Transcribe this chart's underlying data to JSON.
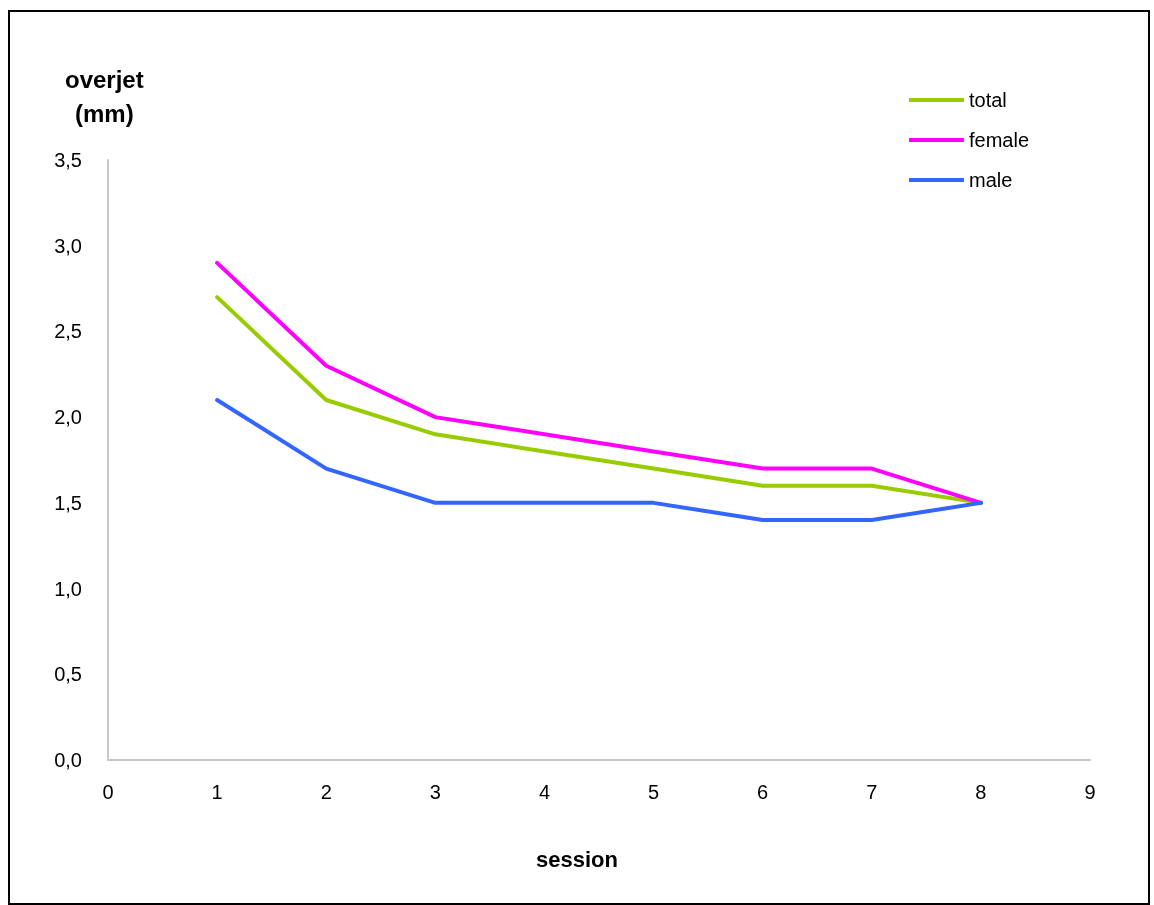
{
  "chart_data": {
    "type": "line",
    "xlabel": "session",
    "ylabel": "overjet\n(mm)",
    "x": [
      1,
      2,
      3,
      4,
      5,
      6,
      7,
      8
    ],
    "series": [
      {
        "name": "total",
        "color": "#99cc00",
        "values": [
          2.7,
          2.1,
          1.9,
          1.8,
          1.7,
          1.6,
          1.6,
          1.5
        ]
      },
      {
        "name": "female",
        "color": "#ff00ff",
        "values": [
          2.9,
          2.3,
          2.0,
          1.9,
          1.8,
          1.7,
          1.7,
          1.5
        ]
      },
      {
        "name": "male",
        "color": "#3366ff",
        "values": [
          2.1,
          1.7,
          1.5,
          1.5,
          1.5,
          1.4,
          1.4,
          1.5
        ]
      }
    ],
    "xlim": [
      0,
      9
    ],
    "xticks": [
      0,
      1,
      2,
      3,
      4,
      5,
      6,
      7,
      8,
      9
    ],
    "ylim": [
      0,
      3.5
    ],
    "yticks": [
      {
        "value": 0,
        "label": "0,0"
      },
      {
        "value": 0.5,
        "label": "0,5"
      },
      {
        "value": 1,
        "label": "1,0"
      },
      {
        "value": 1.5,
        "label": "1,5"
      },
      {
        "value": 2,
        "label": "2,0"
      },
      {
        "value": 2.5,
        "label": "2,5"
      },
      {
        "value": 3,
        "label": "3,0"
      },
      {
        "value": 3.5,
        "label": "3,5"
      }
    ],
    "grid": false,
    "legend": "top right",
    "marker": "none",
    "line_style": "solid"
  }
}
